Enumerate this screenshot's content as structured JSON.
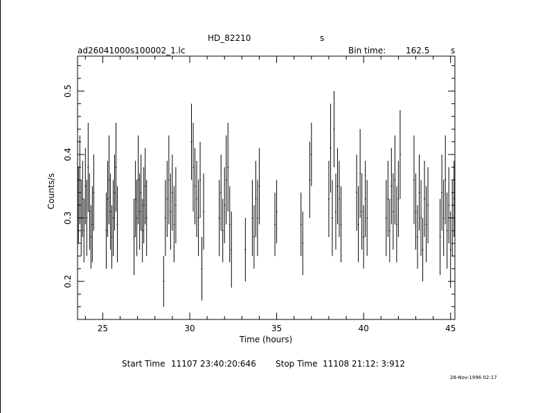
{
  "header": {
    "object_name": "HD_82210",
    "object_suffix": "s",
    "filename": "ad26041000s100002_1.lc",
    "bin_time_label": "Bin time:",
    "bin_time_value": "162.5",
    "bin_time_unit": "s"
  },
  "footer": {
    "start_label": "Start Time",
    "start_value": "11107 23:40:20:646",
    "stop_label": "Stop Time",
    "stop_value": "11108 21:12: 3:912",
    "timestamp": "28-Nov-1996 02:17"
  },
  "chart_data": {
    "type": "scatter",
    "title": "HD_82210",
    "xlabel": "Time (hours)",
    "ylabel": "Counts/s",
    "xlim": [
      23.55,
      45.25
    ],
    "ylim": [
      0.14,
      0.555
    ],
    "x_ticks": [
      25,
      30,
      35,
      40,
      45
    ],
    "y_ticks": [
      0.2,
      0.3,
      0.4,
      0.5
    ],
    "y_tick_labels": [
      "0.2",
      "0.3",
      "0.4",
      "0.5"
    ],
    "grid": false,
    "error_bars": true,
    "points": [
      [
        23.6,
        0.32,
        0.06
      ],
      [
        23.68,
        0.36,
        0.07
      ],
      [
        23.76,
        0.3,
        0.06
      ],
      [
        23.84,
        0.33,
        0.06
      ],
      [
        23.92,
        0.28,
        0.05
      ],
      [
        24.0,
        0.35,
        0.06
      ],
      [
        24.08,
        0.3,
        0.06
      ],
      [
        24.16,
        0.38,
        0.07
      ],
      [
        24.24,
        0.31,
        0.06
      ],
      [
        24.32,
        0.27,
        0.05
      ],
      [
        24.4,
        0.29,
        0.06
      ],
      [
        24.48,
        0.34,
        0.06
      ],
      [
        25.2,
        0.28,
        0.06
      ],
      [
        25.28,
        0.33,
        0.06
      ],
      [
        25.36,
        0.36,
        0.07
      ],
      [
        25.44,
        0.31,
        0.06
      ],
      [
        25.52,
        0.27,
        0.05
      ],
      [
        25.6,
        0.3,
        0.06
      ],
      [
        25.68,
        0.34,
        0.06
      ],
      [
        25.76,
        0.38,
        0.07
      ],
      [
        25.84,
        0.29,
        0.06
      ],
      [
        26.8,
        0.27,
        0.06
      ],
      [
        26.88,
        0.33,
        0.06
      ],
      [
        26.96,
        0.3,
        0.06
      ],
      [
        27.04,
        0.36,
        0.07
      ],
      [
        27.12,
        0.31,
        0.06
      ],
      [
        27.2,
        0.34,
        0.06
      ],
      [
        27.28,
        0.28,
        0.05
      ],
      [
        27.36,
        0.32,
        0.06
      ],
      [
        27.44,
        0.35,
        0.06
      ],
      [
        27.52,
        0.3,
        0.06
      ],
      [
        28.5,
        0.2,
        0.04
      ],
      [
        28.6,
        0.3,
        0.06
      ],
      [
        28.7,
        0.33,
        0.06
      ],
      [
        28.8,
        0.36,
        0.07
      ],
      [
        28.9,
        0.31,
        0.06
      ],
      [
        29.0,
        0.34,
        0.06
      ],
      [
        29.1,
        0.29,
        0.06
      ],
      [
        29.2,
        0.32,
        0.06
      ],
      [
        30.1,
        0.42,
        0.06
      ],
      [
        30.2,
        0.38,
        0.07
      ],
      [
        30.3,
        0.35,
        0.06
      ],
      [
        30.4,
        0.33,
        0.06
      ],
      [
        30.5,
        0.3,
        0.06
      ],
      [
        30.6,
        0.36,
        0.06
      ],
      [
        30.7,
        0.22,
        0.05
      ],
      [
        30.8,
        0.31,
        0.06
      ],
      [
        31.7,
        0.3,
        0.06
      ],
      [
        31.8,
        0.34,
        0.06
      ],
      [
        31.9,
        0.28,
        0.05
      ],
      [
        32.0,
        0.32,
        0.06
      ],
      [
        32.1,
        0.36,
        0.07
      ],
      [
        32.2,
        0.38,
        0.07
      ],
      [
        32.3,
        0.29,
        0.06
      ],
      [
        32.4,
        0.25,
        0.06
      ],
      [
        33.2,
        0.25,
        0.05
      ],
      [
        33.6,
        0.3,
        0.06
      ],
      [
        33.7,
        0.27,
        0.05
      ],
      [
        33.8,
        0.33,
        0.06
      ],
      [
        33.9,
        0.3,
        0.06
      ],
      [
        34.0,
        0.35,
        0.06
      ],
      [
        34.9,
        0.29,
        0.05
      ],
      [
        35.0,
        0.31,
        0.05
      ],
      [
        36.4,
        0.29,
        0.05
      ],
      [
        36.5,
        0.26,
        0.05
      ],
      [
        36.9,
        0.36,
        0.06
      ],
      [
        37.0,
        0.4,
        0.05
      ],
      [
        38.0,
        0.33,
        0.06
      ],
      [
        38.1,
        0.41,
        0.07
      ],
      [
        38.2,
        0.3,
        0.06
      ],
      [
        38.3,
        0.44,
        0.06
      ],
      [
        38.4,
        0.31,
        0.06
      ],
      [
        38.5,
        0.35,
        0.06
      ],
      [
        38.6,
        0.33,
        0.06
      ],
      [
        38.7,
        0.29,
        0.06
      ],
      [
        39.6,
        0.34,
        0.06
      ],
      [
        39.7,
        0.29,
        0.06
      ],
      [
        39.8,
        0.37,
        0.07
      ],
      [
        39.9,
        0.31,
        0.06
      ],
      [
        40.0,
        0.27,
        0.05
      ],
      [
        40.1,
        0.33,
        0.06
      ],
      [
        40.2,
        0.3,
        0.06
      ],
      [
        41.3,
        0.3,
        0.06
      ],
      [
        41.4,
        0.33,
        0.06
      ],
      [
        41.5,
        0.28,
        0.05
      ],
      [
        41.6,
        0.35,
        0.06
      ],
      [
        41.7,
        0.31,
        0.06
      ],
      [
        41.8,
        0.36,
        0.07
      ],
      [
        41.9,
        0.29,
        0.06
      ],
      [
        42.0,
        0.33,
        0.06
      ],
      [
        42.1,
        0.4,
        0.07
      ],
      [
        42.9,
        0.36,
        0.07
      ],
      [
        43.0,
        0.31,
        0.06
      ],
      [
        43.1,
        0.27,
        0.05
      ],
      [
        43.2,
        0.34,
        0.06
      ],
      [
        43.3,
        0.3,
        0.06
      ],
      [
        43.4,
        0.25,
        0.05
      ],
      [
        43.5,
        0.33,
        0.06
      ],
      [
        43.6,
        0.29,
        0.06
      ],
      [
        43.7,
        0.32,
        0.06
      ],
      [
        44.4,
        0.27,
        0.06
      ],
      [
        44.5,
        0.34,
        0.06
      ],
      [
        44.6,
        0.3,
        0.06
      ],
      [
        44.7,
        0.36,
        0.07
      ],
      [
        44.8,
        0.28,
        0.06
      ],
      [
        44.9,
        0.32,
        0.06
      ],
      [
        45.0,
        0.25,
        0.06
      ],
      [
        45.1,
        0.3,
        0.06
      ],
      [
        45.2,
        0.33,
        0.06
      ]
    ]
  }
}
